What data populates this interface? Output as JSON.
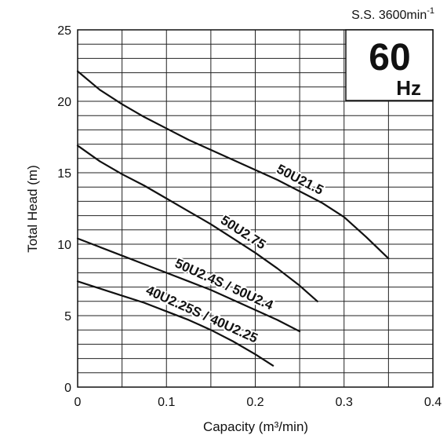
{
  "chart_data": {
    "type": "line",
    "title": "",
    "xlabel": "Capacity (m³/min)",
    "ylabel": "Total Head (m)",
    "xlim": [
      0,
      0.4
    ],
    "ylim": [
      0,
      25
    ],
    "x_ticks": [
      "0",
      "0.1",
      "0.2",
      "0.3",
      "0.4"
    ],
    "y_ticks": [
      "0",
      "5",
      "10",
      "15",
      "20",
      "25"
    ],
    "grid": true,
    "x_grid_step": 0.05,
    "y_grid_step": 1,
    "speed_note": "S.S. 3600min",
    "speed_note_sup": "-1",
    "frequency_value": "60",
    "frequency_unit": "Hz",
    "series": [
      {
        "name": "50U21.5",
        "x": [
          0,
          0.025,
          0.05,
          0.075,
          0.1,
          0.125,
          0.15,
          0.175,
          0.2,
          0.225,
          0.25,
          0.275,
          0.3,
          0.325,
          0.35
        ],
        "y": [
          22.1,
          20.8,
          19.8,
          18.9,
          18.1,
          17.3,
          16.6,
          15.9,
          15.2,
          14.5,
          13.7,
          12.9,
          11.9,
          10.5,
          9.0
        ]
      },
      {
        "name": "50U2.75",
        "x": [
          0,
          0.025,
          0.05,
          0.075,
          0.1,
          0.125,
          0.15,
          0.175,
          0.2,
          0.225,
          0.25,
          0.27
        ],
        "y": [
          16.9,
          15.8,
          14.9,
          14.1,
          13.2,
          12.3,
          11.4,
          10.4,
          9.4,
          8.3,
          7.1,
          6.0
        ]
      },
      {
        "name": "50U2.4S / 50U2.4",
        "x": [
          0,
          0.025,
          0.05,
          0.075,
          0.1,
          0.125,
          0.15,
          0.175,
          0.2,
          0.225,
          0.25
        ],
        "y": [
          10.4,
          9.8,
          9.2,
          8.6,
          8.0,
          7.4,
          6.8,
          6.1,
          5.4,
          4.7,
          3.9
        ]
      },
      {
        "name": "40U2.25S / 40U2.25",
        "x": [
          0,
          0.025,
          0.05,
          0.075,
          0.1,
          0.125,
          0.15,
          0.175,
          0.2,
          0.22
        ],
        "y": [
          7.4,
          6.9,
          6.4,
          5.9,
          5.3,
          4.7,
          4.0,
          3.2,
          2.3,
          1.5
        ]
      }
    ]
  }
}
